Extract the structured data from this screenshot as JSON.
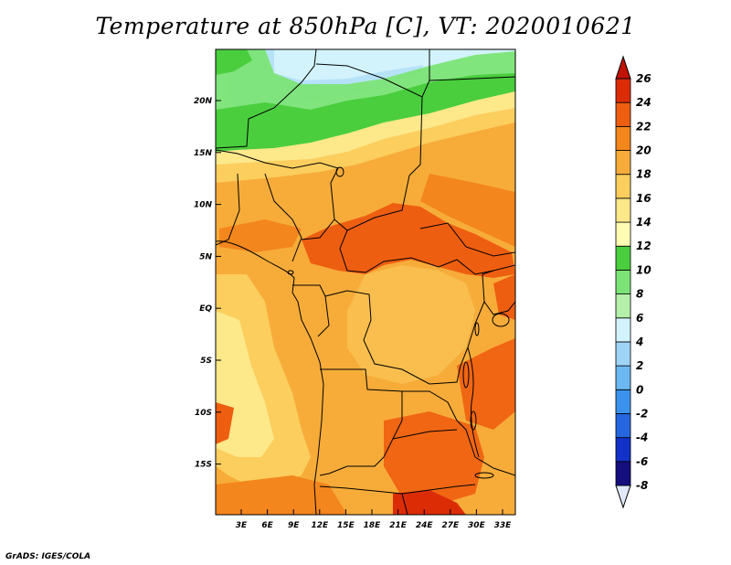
{
  "title": "Temperature at 850hPa [C], VT: 2020010621",
  "credit": "GrADS: IGES/COLA",
  "map": {
    "lon_ticks": [
      "3E",
      "6E",
      "9E",
      "12E",
      "15E",
      "18E",
      "21E",
      "24E",
      "27E",
      "30E",
      "33E"
    ],
    "lat_ticks": [
      "20N",
      "15N",
      "10N",
      "5N",
      "EQ",
      "5S",
      "10S",
      "15S"
    ]
  },
  "colorbar": {
    "labels": [
      "26",
      "24",
      "22",
      "20",
      "18",
      "16",
      "14",
      "12",
      "10",
      "8",
      "6",
      "4",
      "2",
      "0",
      "-2",
      "-4",
      "-6",
      "-8"
    ],
    "colors": [
      "#e0eafc",
      "#150e7e",
      "#1131c8",
      "#2566e0",
      "#3a92ec",
      "#6bb8f2",
      "#9ed4f6",
      "#d2f3fc",
      "#b4f0aa",
      "#7ce476",
      "#4ace3e",
      "#fdfcb2",
      "#fde88a",
      "#fbce5e",
      "#f7ac3a",
      "#f3861c",
      "#ee5e10",
      "#dc2c06",
      "#c01205"
    ]
  }
}
